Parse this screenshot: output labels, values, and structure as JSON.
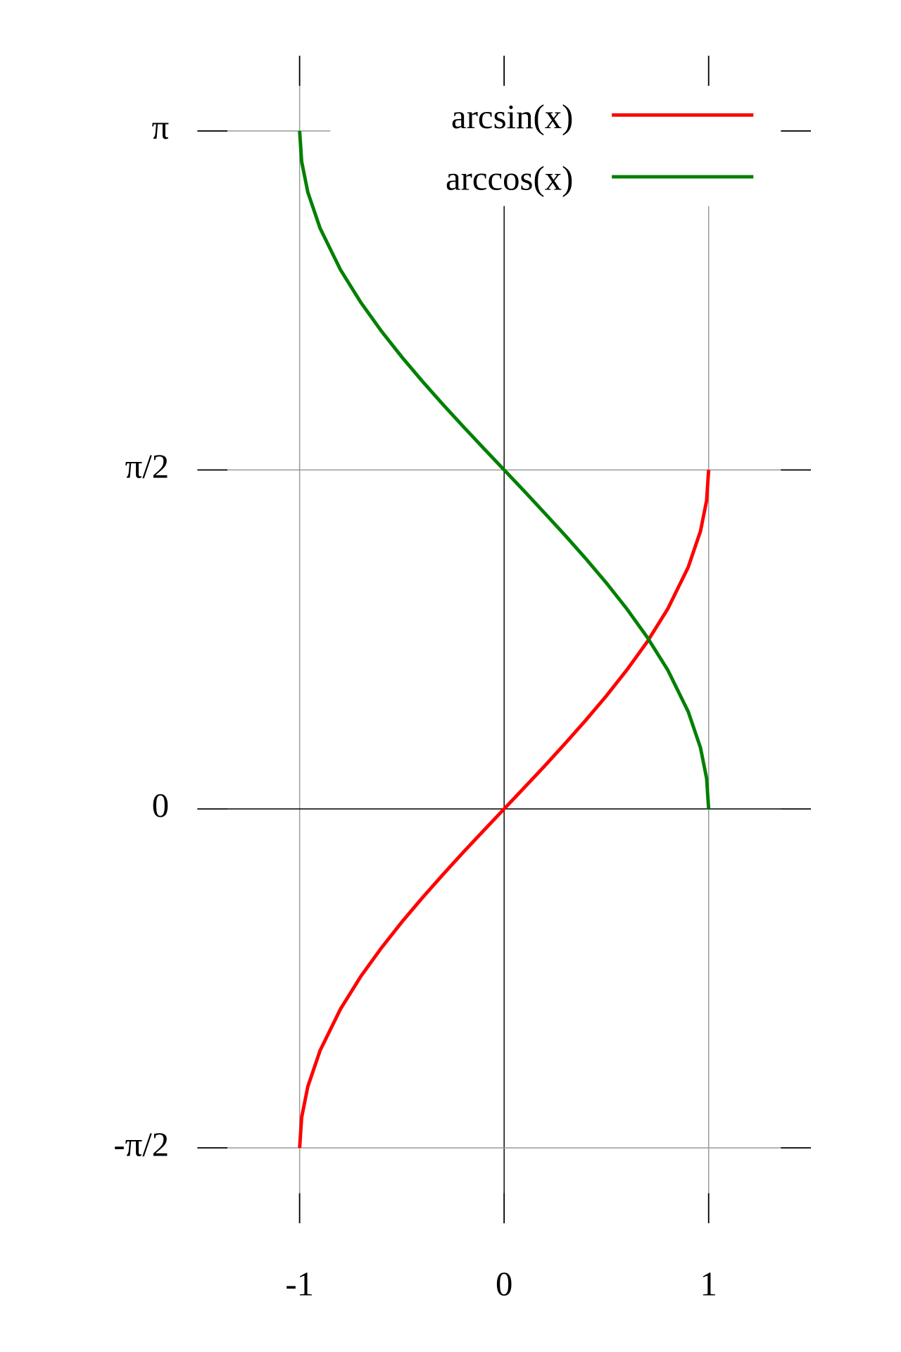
{
  "chart_data": {
    "type": "line",
    "x": [
      -1,
      -0.99,
      -0.96,
      -0.9,
      -0.8,
      -0.7,
      -0.6,
      -0.5,
      -0.4,
      -0.3,
      -0.2,
      -0.1,
      0,
      0.1,
      0.2,
      0.3,
      0.4,
      0.5,
      0.6,
      0.7,
      0.8,
      0.9,
      0.96,
      0.99,
      1
    ],
    "series": [
      {
        "name": "arcsin(x)",
        "color": "#ff0000",
        "values": [
          -1.571,
          -1.429,
          -1.287,
          -1.12,
          -0.927,
          -0.775,
          -0.644,
          -0.524,
          -0.412,
          -0.305,
          -0.201,
          -0.1,
          0,
          0.1,
          0.201,
          0.305,
          0.412,
          0.524,
          0.644,
          0.775,
          0.927,
          1.12,
          1.287,
          1.429,
          1.571
        ]
      },
      {
        "name": "arccos(x)",
        "color": "#008000",
        "values": [
          3.142,
          3.0,
          2.858,
          2.691,
          2.498,
          2.346,
          2.214,
          2.094,
          1.982,
          1.875,
          1.772,
          1.671,
          1.571,
          1.471,
          1.369,
          1.266,
          1.159,
          1.047,
          0.927,
          0.795,
          0.644,
          0.451,
          0.284,
          0.142,
          0
        ]
      }
    ],
    "xlim": [
      -1.5,
      1.5
    ],
    "ylim": [
      -1.92,
      3.49
    ],
    "xticks": [
      -1,
      0,
      1
    ],
    "yticks": [
      {
        "value": -1.5708,
        "label": "-π/2"
      },
      0,
      {
        "value": 1.5708,
        "label": "π/2"
      },
      {
        "value": 3.1416,
        "label": "π"
      }
    ],
    "grid": true,
    "legend": "top-right"
  }
}
